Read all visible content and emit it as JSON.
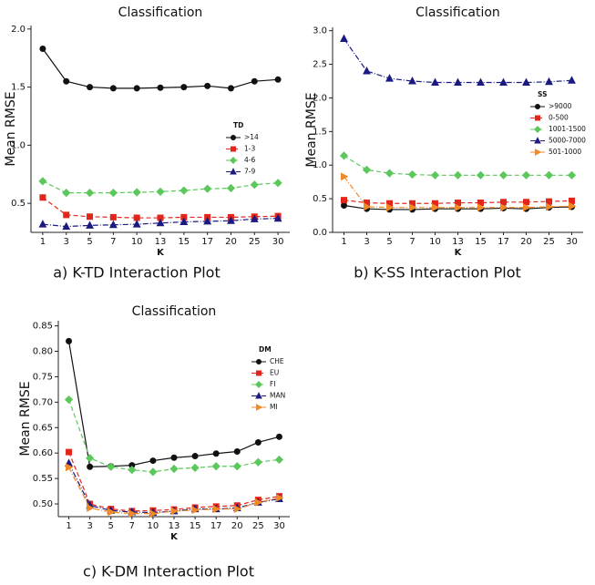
{
  "chart_data": [
    {
      "type": "line",
      "title": "Classification",
      "xlabel": "K",
      "ylabel": "Mean RMSE",
      "caption": "a)  K-TD Interaction Plot",
      "legend_title": "TD",
      "categories": [
        "1",
        "3",
        "5",
        "7",
        "10",
        "13",
        "15",
        "17",
        "20",
        "25",
        "30"
      ],
      "ylim": [
        0.25,
        2.03
      ],
      "yticks": [
        0.5,
        {
          "value": 1.0,
          "label": "1.0"
        },
        1.5,
        {
          "value": 2.0,
          "label": "2.0"
        }
      ],
      "series": [
        {
          "name": ">14",
          "color": "#111111",
          "marker": "circle",
          "linestyle": "solid",
          "values": [
            1.83,
            1.55,
            1.5,
            1.49,
            1.49,
            1.495,
            1.5,
            1.51,
            1.49,
            1.55,
            1.565
          ]
        },
        {
          "name": "1-3",
          "color": "#e3261c",
          "marker": "square",
          "linestyle": "dashed",
          "values": [
            0.55,
            0.4,
            0.385,
            0.38,
            0.375,
            0.375,
            0.38,
            0.38,
            0.38,
            0.385,
            0.39
          ]
        },
        {
          "name": "4-6",
          "color": "#5cc85c",
          "marker": "diamond",
          "linestyle": "dashed",
          "values": [
            0.69,
            0.59,
            0.59,
            0.59,
            0.595,
            0.6,
            0.61,
            0.625,
            0.63,
            0.66,
            0.675
          ]
        },
        {
          "name": "7-9",
          "color": "#1a1a80",
          "marker": "triangle",
          "linestyle": "dashdot",
          "values": [
            0.32,
            0.3,
            0.31,
            0.315,
            0.32,
            0.33,
            0.34,
            0.345,
            0.35,
            0.365,
            0.37
          ]
        }
      ]
    },
    {
      "type": "line",
      "title": "Classification",
      "xlabel": "K",
      "ylabel": "Mean RMSE",
      "caption": "b)  K-SS Interaction Plot",
      "legend_title": "SS",
      "categories": [
        "1",
        "3",
        "5",
        "7",
        "10",
        "13",
        "15",
        "17",
        "20",
        "25",
        "30"
      ],
      "ylim": [
        0,
        3.05
      ],
      "yticks": [
        {
          "value": 0,
          "label": "0.0"
        },
        0.5,
        {
          "value": 1,
          "label": "1.0"
        },
        1.5,
        {
          "value": 2,
          "label": "2.0"
        },
        2.5,
        {
          "value": 3,
          "label": "3.0"
        }
      ],
      "series": [
        {
          "name": ">9000",
          "color": "#111111",
          "marker": "circle",
          "linestyle": "solid",
          "values": [
            0.4,
            0.35,
            0.34,
            0.34,
            0.35,
            0.35,
            0.35,
            0.36,
            0.35,
            0.37,
            0.38
          ]
        },
        {
          "name": "0-500",
          "color": "#e3261c",
          "marker": "square",
          "linestyle": "dashed",
          "values": [
            0.48,
            0.44,
            0.43,
            0.43,
            0.43,
            0.44,
            0.44,
            0.45,
            0.45,
            0.46,
            0.47
          ]
        },
        {
          "name": "1001-1500",
          "color": "#5cc85c",
          "marker": "diamond",
          "linestyle": "dashed",
          "values": [
            1.14,
            0.93,
            0.88,
            0.86,
            0.85,
            0.85,
            0.85,
            0.85,
            0.85,
            0.85,
            0.85
          ]
        },
        {
          "name": "5000-7000",
          "color": "#1a1a80",
          "marker": "triangle",
          "linestyle": "dashdot",
          "values": [
            2.88,
            2.4,
            2.29,
            2.25,
            2.23,
            2.23,
            2.23,
            2.23,
            2.23,
            2.24,
            2.26
          ]
        },
        {
          "name": "501-1000",
          "color": "#f08a28",
          "marker": "triangle-right",
          "linestyle": "dashdot",
          "values": [
            0.83,
            0.38,
            0.37,
            0.37,
            0.37,
            0.37,
            0.37,
            0.37,
            0.37,
            0.38,
            0.39
          ]
        }
      ]
    },
    {
      "type": "line",
      "title": "Classification",
      "xlabel": "K",
      "ylabel": "Mean RMSE",
      "caption": "c)  K-DM Interaction Plot",
      "legend_title": "DM",
      "categories": [
        "1",
        "3",
        "5",
        "7",
        "10",
        "13",
        "15",
        "17",
        "20",
        "25",
        "30"
      ],
      "ylim": [
        0.475,
        0.86
      ],
      "yticks": [
        {
          "value": 0.5,
          "label": "0.50"
        },
        0.55,
        {
          "value": 0.6,
          "label": "0.60"
        },
        0.65,
        {
          "value": 0.7,
          "label": "0.70"
        },
        0.75,
        {
          "value": 0.8,
          "label": "0.80"
        },
        0.85
      ],
      "series": [
        {
          "name": "CHE",
          "color": "#111111",
          "marker": "circle",
          "linestyle": "solid",
          "values": [
            0.82,
            0.573,
            0.574,
            0.576,
            0.585,
            0.591,
            0.594,
            0.599,
            0.603,
            0.621,
            0.632
          ]
        },
        {
          "name": "EU",
          "color": "#e3261c",
          "marker": "square",
          "linestyle": "dashed",
          "values": [
            0.602,
            0.5,
            0.49,
            0.486,
            0.487,
            0.489,
            0.493,
            0.495,
            0.497,
            0.508,
            0.515
          ]
        },
        {
          "name": "FI",
          "color": "#5cc85c",
          "marker": "diamond",
          "linestyle": "dashed",
          "values": [
            0.705,
            0.59,
            0.573,
            0.567,
            0.563,
            0.569,
            0.571,
            0.574,
            0.574,
            0.582,
            0.587
          ]
        },
        {
          "name": "MAN",
          "color": "#1a1a80",
          "marker": "triangle",
          "linestyle": "dashdot",
          "values": [
            0.58,
            0.497,
            0.487,
            0.484,
            0.483,
            0.486,
            0.49,
            0.49,
            0.492,
            0.503,
            0.51
          ]
        },
        {
          "name": "MI",
          "color": "#f08a28",
          "marker": "triangle-right",
          "linestyle": "dashdot",
          "values": [
            0.572,
            0.492,
            0.484,
            0.481,
            0.481,
            0.486,
            0.488,
            0.49,
            0.49,
            0.503,
            0.512
          ]
        }
      ]
    }
  ]
}
